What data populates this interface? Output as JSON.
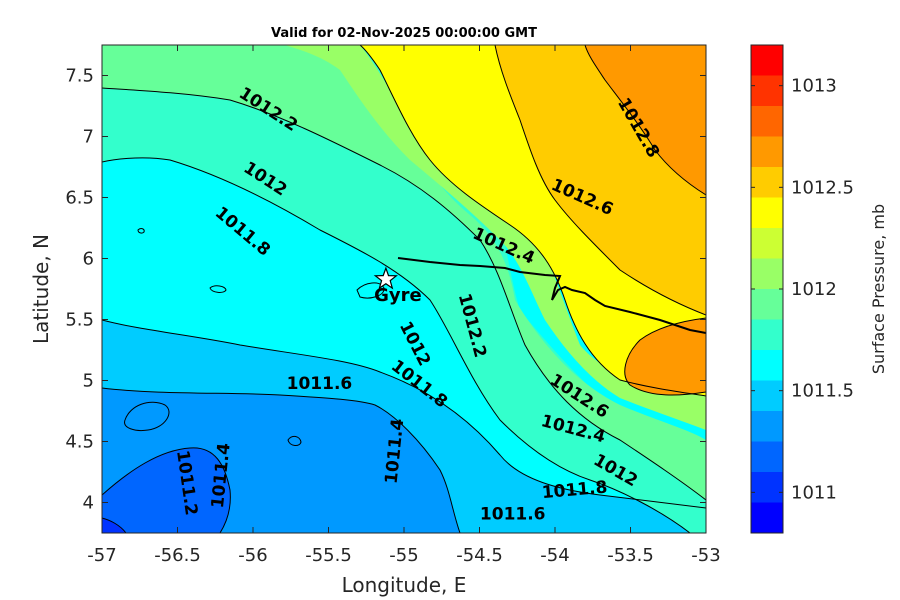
{
  "chart_data": {
    "type": "contourf",
    "title": "Valid for 02-Nov-2025 00:00:00 GMT",
    "xlabel": "Longitude, E",
    "ylabel": "Latitude, N",
    "xlim": [
      -57,
      -53
    ],
    "ylim": [
      3.75,
      7.75
    ],
    "x_ticks": [
      -57,
      -56.5,
      -56,
      -55.5,
      -55,
      -54.5,
      -54,
      -53.5,
      -53
    ],
    "x_tick_labels": [
      "-57",
      "-56.5",
      "-56",
      "-55.5",
      "-55",
      "-54.5",
      "-54",
      "-53.5",
      "-53"
    ],
    "y_ticks": [
      4,
      4.5,
      5,
      5.5,
      6,
      6.5,
      7,
      7.5
    ],
    "y_tick_labels": [
      "4",
      "4.5",
      "5",
      "5.5",
      "6",
      "6.5",
      "7",
      "7.5"
    ],
    "colorbar": {
      "label": "Surface Pressure, mb",
      "range": [
        1010.8,
        1013.2
      ],
      "ticks": [
        1011,
        1011.5,
        1012,
        1012.5,
        1013
      ],
      "tick_labels": [
        "1011",
        "1011.5",
        "1012",
        "1012.5",
        "1013"
      ],
      "levels": [
        1010.8,
        1010.9,
        1011.0,
        1011.1,
        1011.2,
        1011.3,
        1011.4,
        1011.5,
        1011.6,
        1011.7,
        1011.8,
        1011.9,
        1012.0,
        1012.1,
        1012.2,
        1012.3,
        1012.4,
        1012.5,
        1012.6,
        1012.7,
        1012.8,
        1012.9,
        1013.0,
        1013.1,
        1013.2
      ],
      "colors": [
        "#0000ff",
        "#0033ff",
        "#0066ff",
        "#0099ff",
        "#00ccff",
        "#00ffff",
        "#33ffcc",
        "#66ff99",
        "#99ff66",
        "#ccff33",
        "#ffff00",
        "#ffcc00",
        "#ff9900",
        "#ff6600",
        "#ff3300",
        "#ff0000"
      ]
    },
    "contour_labels": [
      {
        "text": "1012.2",
        "lon": -55.9,
        "lat": 7.22,
        "angle": 33
      },
      {
        "text": "1012",
        "lon": -55.92,
        "lat": 6.65,
        "angle": 33
      },
      {
        "text": "1011.8",
        "lon": -56.07,
        "lat": 6.22,
        "angle": 40
      },
      {
        "text": "1012.8",
        "lon": -53.45,
        "lat": 7.07,
        "angle": 60
      },
      {
        "text": "1012.6",
        "lon": -53.82,
        "lat": 6.5,
        "angle": 24
      },
      {
        "text": "1012.4",
        "lon": -54.34,
        "lat": 6.1,
        "angle": 24
      },
      {
        "text": "1012.2",
        "lon": -54.55,
        "lat": 5.45,
        "angle": 75
      },
      {
        "text": "1012",
        "lon": -54.93,
        "lat": 5.3,
        "angle": 63
      },
      {
        "text": "1011.8",
        "lon": -54.9,
        "lat": 4.97,
        "angle": 38
      },
      {
        "text": "1011.6",
        "lon": -55.56,
        "lat": 4.97,
        "angle": 0
      },
      {
        "text": "1011.4",
        "lon": -55.06,
        "lat": 4.42,
        "angle": -84
      },
      {
        "text": "1011.4",
        "lon": -56.21,
        "lat": 4.22,
        "angle": -84
      },
      {
        "text": "1011.2",
        "lon": -56.44,
        "lat": 4.16,
        "angle": 82
      },
      {
        "text": "1012.6",
        "lon": -53.84,
        "lat": 4.87,
        "angle": 33
      },
      {
        "text": "1012.4",
        "lon": -53.88,
        "lat": 4.6,
        "angle": 15
      },
      {
        "text": "1012",
        "lon": -53.6,
        "lat": 4.26,
        "angle": 30
      },
      {
        "text": "1011.8",
        "lon": -53.87,
        "lat": 4.1,
        "angle": -5
      },
      {
        "text": "1011.6",
        "lon": -54.28,
        "lat": 3.9,
        "angle": 0
      }
    ],
    "station": {
      "name": "Gyre",
      "lon": -55.12,
      "lat": 5.83
    }
  }
}
